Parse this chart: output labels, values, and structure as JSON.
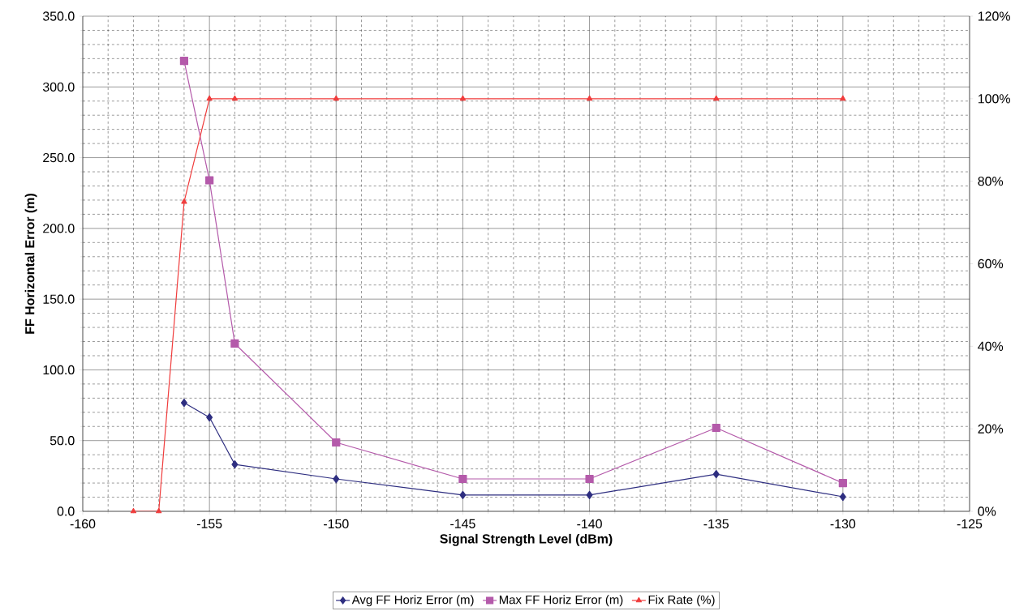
{
  "chart_data": {
    "type": "line",
    "xlabel": "Signal Strength Level (dBm)",
    "ylabel": "FF Horizontal Error (m)",
    "xlim": [
      -160,
      -125
    ],
    "xticks": [
      -160,
      -155,
      -150,
      -145,
      -140,
      -135,
      -130,
      -125
    ],
    "ylim": [
      0,
      350
    ],
    "yticks": [
      {
        "value": 0,
        "label": "0.0"
      },
      {
        "value": 50,
        "label": "50.0"
      },
      {
        "value": 100,
        "label": "100.0"
      },
      {
        "value": 150,
        "label": "150.0"
      },
      {
        "value": 200,
        "label": "200.0"
      },
      {
        "value": 250,
        "label": "250.0"
      },
      {
        "value": 300,
        "label": "300.0"
      },
      {
        "value": 350,
        "label": "350.0"
      }
    ],
    "y2lim": [
      0,
      120
    ],
    "y2ticks": [
      {
        "value": 0,
        "label": "0%"
      },
      {
        "value": 20,
        "label": "20%"
      },
      {
        "value": 40,
        "label": "40%"
      },
      {
        "value": 60,
        "label": "60%"
      },
      {
        "value": 80,
        "label": "80%"
      },
      {
        "value": 100,
        "label": "100%"
      },
      {
        "value": 120,
        "label": "120%"
      }
    ],
    "grid": true,
    "legend": "bottom",
    "line_style": "solid",
    "series": [
      {
        "name": "Avg FF Horiz Error (m)",
        "color": "#2e2e80",
        "marker": "diamond",
        "x": [
          -156,
          -155,
          -154,
          -150,
          -145,
          -140,
          -135,
          -130
        ],
        "values": [
          76.7,
          66.4,
          33.2,
          22.9,
          11.5,
          11.5,
          26.3,
          10.3
        ]
      },
      {
        "name": "Max FF Horiz Error (m)",
        "color": "#b45aaa",
        "marker": "square",
        "x": [
          -156,
          -155,
          -154,
          -150,
          -145,
          -140,
          -135,
          -130
        ],
        "values": [
          318.4,
          234,
          118.6,
          48.7,
          22.9,
          22.9,
          59,
          20
        ]
      },
      {
        "name": "Fix Rate (%)",
        "color": "#f03c3c",
        "marker": "triangle",
        "axis": "y2",
        "x": [
          -158,
          -157,
          -156,
          -155,
          -154,
          -150,
          -145,
          -140,
          -135,
          -130
        ],
        "values": [
          0,
          0,
          75,
          100,
          100,
          100,
          100,
          100,
          100,
          100
        ]
      }
    ]
  }
}
